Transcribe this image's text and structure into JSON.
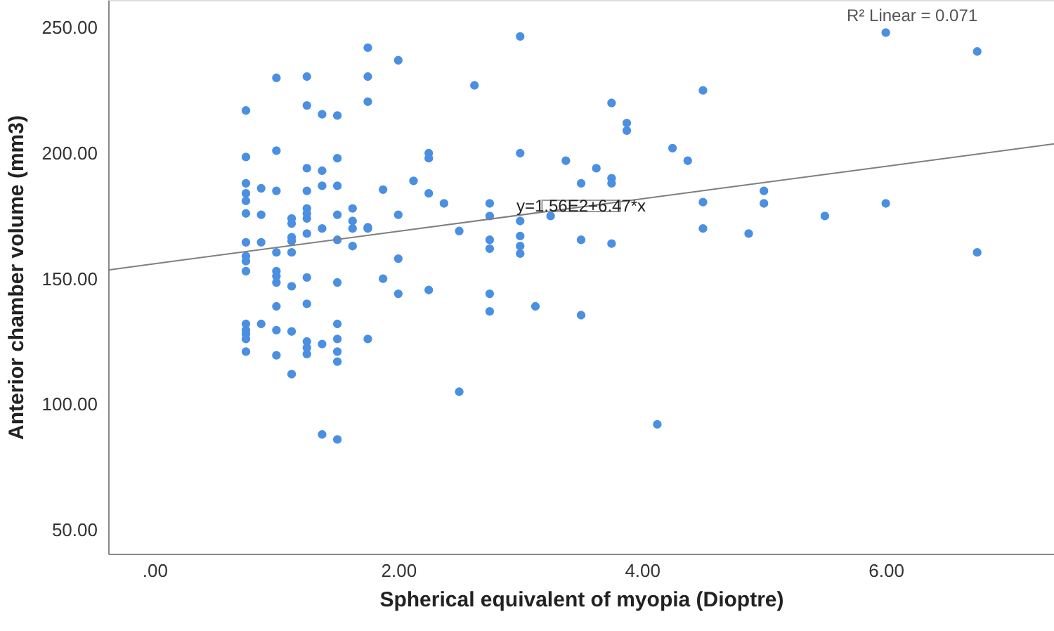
{
  "chart_data": {
    "type": "scatter",
    "xlabel": "Spherical equivalent of myopia (Dioptre)",
    "ylabel": "Anterior chamber volume (mm3)",
    "xlim": [
      -0.38,
      7.38
    ],
    "ylim": [
      40.5,
      261
    ],
    "xticks": [
      {
        "value": 0,
        "label": ".00"
      },
      {
        "value": 2,
        "label": "2.00"
      },
      {
        "value": 4,
        "label": "4.00"
      },
      {
        "value": 6,
        "label": "6.00"
      }
    ],
    "yticks": [
      {
        "value": 50,
        "label": "50.00"
      },
      {
        "value": 100,
        "label": "100.00"
      },
      {
        "value": 150,
        "label": "150.00"
      },
      {
        "value": 200,
        "label": "200.00"
      },
      {
        "value": 250,
        "label": "250.00"
      }
    ],
    "grid": false,
    "annotations": [
      "R² Linear = 0.071",
      {
        "text": "y=1.56E2+6.47*x",
        "x": 3.5,
        "y": 179
      }
    ],
    "series": [
      {
        "color": "#4b8fe2",
        "marker": "circle",
        "x": [
          0.75,
          0.75,
          0.75,
          0.75,
          0.75,
          0.75,
          0.75,
          0.75,
          0.75,
          0.75,
          0.75,
          0.75,
          0.75,
          0.75,
          0.75,
          0.875,
          0.875,
          0.875,
          0.875,
          1,
          1,
          1,
          1,
          1,
          1,
          1,
          1,
          1,
          1,
          1.125,
          1.125,
          1.125,
          1.125,
          1.125,
          1.125,
          1.125,
          1.125,
          1.25,
          1.25,
          1.25,
          1.25,
          1.25,
          1.25,
          1.25,
          1.25,
          1.25,
          1.25,
          1.25,
          1.25,
          1.25,
          1.375,
          1.375,
          1.375,
          1.375,
          1.375,
          1.375,
          1.5,
          1.5,
          1.5,
          1.5,
          1.5,
          1.5,
          1.5,
          1.5,
          1.5,
          1.5,
          1.5,
          1.625,
          1.625,
          1.625,
          1.625,
          1.75,
          1.75,
          1.75,
          1.75,
          1.75,
          1.75,
          1.875,
          1.875,
          2,
          2,
          2,
          2,
          2.125,
          2.25,
          2.25,
          2.25,
          2.25,
          2.375,
          2.5,
          2.5,
          2.625,
          2.75,
          2.75,
          2.75,
          2.75,
          2.75,
          2.75,
          3,
          3,
          3,
          3,
          3,
          3,
          3.125,
          3.25,
          3.375,
          3.5,
          3.5,
          3.5,
          3.625,
          3.75,
          3.75,
          3.75,
          3.75,
          3.875,
          3.875,
          4.125,
          4.25,
          4.375,
          4.5,
          4.5,
          4.5,
          4.875,
          5,
          5,
          5.5,
          6,
          6,
          6.75,
          6.75
        ],
        "values": [
          217,
          198.5,
          188,
          184,
          181,
          176,
          164.5,
          159,
          157,
          153,
          132,
          129.5,
          128,
          126,
          121,
          186,
          175.5,
          164.5,
          132,
          230,
          201,
          185,
          160.5,
          153,
          151,
          148.5,
          139,
          129.5,
          119.5,
          174,
          172,
          166.5,
          165,
          160.5,
          147,
          129,
          112,
          230.5,
          219,
          194,
          185,
          178,
          176,
          174,
          168,
          150.5,
          140,
          125,
          122.5,
          120,
          215.5,
          193,
          187,
          170,
          124,
          88,
          215,
          198,
          187,
          175.5,
          165.5,
          148.5,
          132,
          126,
          121,
          117,
          86,
          178,
          173,
          170,
          163,
          242,
          230.5,
          220.5,
          170.5,
          170,
          126,
          185.5,
          150,
          237,
          175.5,
          158,
          144,
          189,
          200,
          198,
          184,
          145.5,
          180,
          169,
          105,
          227,
          180,
          175,
          165.5,
          162,
          144,
          137,
          246.5,
          200,
          173,
          167,
          163,
          160,
          139,
          175,
          197,
          188,
          165.5,
          135.5,
          194,
          220,
          190,
          188,
          164,
          212,
          209,
          92,
          202,
          197,
          225,
          180.5,
          170,
          168,
          185,
          180,
          175,
          248,
          180,
          240.5,
          160.5
        ]
      },
      {
        "type": "line",
        "color": "#7f7f7f",
        "x": [
          -0.38,
          7.38
        ],
        "values": [
          153.5,
          203.7
        ]
      }
    ]
  }
}
